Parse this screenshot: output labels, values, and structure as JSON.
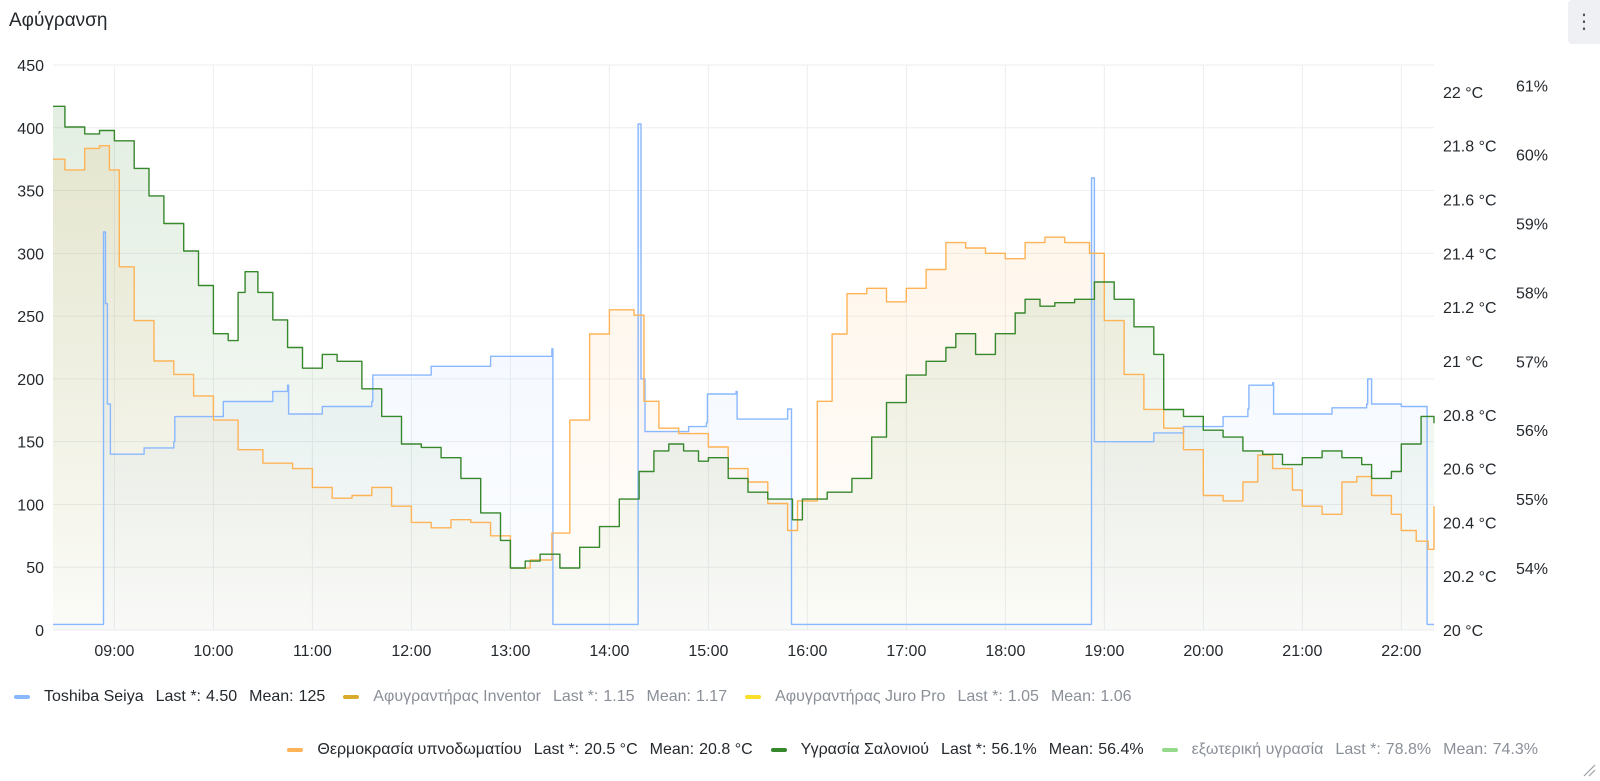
{
  "panel": {
    "title": "Αφύγρανση",
    "menu_icon": "kebab-menu-icon"
  },
  "legend": [
    {
      "name": "Toshiba Seiya",
      "color": "#8ab8ff",
      "dim": false,
      "last_label": "Last *:",
      "last": "4.50",
      "mean_label": "Mean:",
      "mean": "125"
    },
    {
      "name": "Αφυγραντήρας Inventor",
      "color": "#d8ab2c",
      "dim": true,
      "last_label": "Last *:",
      "last": "1.15",
      "mean_label": "Mean:",
      "mean": "1.17"
    },
    {
      "name": "Αφυγραντήρας Juro Pro",
      "color": "#fade2a",
      "dim": true,
      "last_label": "Last *:",
      "last": "1.05",
      "mean_label": "Mean:",
      "mean": "1.06"
    },
    {
      "name": "Θερμοκρασία υπνοδωματίου",
      "color": "#ffb357",
      "dim": false,
      "last_label": "Last *:",
      "last": "20.5 °C",
      "mean_label": "Mean:",
      "mean": "20.8 °C"
    },
    {
      "name": "Υγρασία Σαλονιού",
      "color": "#37872d",
      "dim": false,
      "last_label": "Last *:",
      "last": "56.1%",
      "mean_label": "Mean:",
      "mean": "56.4%"
    },
    {
      "name": "εξωτερική υγρασία",
      "color": "#96d98d",
      "dim": true,
      "last_label": "Last *:",
      "last": "78.8%",
      "mean_label": "Mean:",
      "mean": "74.3%"
    }
  ],
  "chart_data": {
    "type": "line",
    "title": "Αφύγρανση",
    "x_unit": "hours",
    "x_range": [
      8.38,
      22.33
    ],
    "x_ticks": [
      9,
      10,
      11,
      12,
      13,
      14,
      15,
      16,
      17,
      18,
      19,
      20,
      21,
      22
    ],
    "x_tick_labels": [
      "09:00",
      "10:00",
      "11:00",
      "12:00",
      "13:00",
      "14:00",
      "15:00",
      "16:00",
      "17:00",
      "18:00",
      "19:00",
      "20:00",
      "21:00",
      "22:00"
    ],
    "grid": true,
    "y_axes": [
      {
        "id": "left",
        "range": [
          0,
          450
        ],
        "ticks": [
          0,
          50,
          100,
          150,
          200,
          250,
          300,
          350,
          400,
          450
        ],
        "tick_labels": [
          "0",
          "50",
          "100",
          "150",
          "200",
          "250",
          "300",
          "350",
          "400",
          "450"
        ]
      },
      {
        "id": "temp",
        "range": [
          20.0,
          22.1
        ],
        "ticks": [
          20.0,
          20.2,
          20.4,
          20.6,
          20.8,
          21.0,
          21.2,
          21.4,
          21.6,
          21.8,
          22.0
        ],
        "tick_labels": [
          "20 °C",
          "20.2 °C",
          "20.4 °C",
          "20.6 °C",
          "20.8 °C",
          "21 °C",
          "21.2 °C",
          "21.4 °C",
          "21.6 °C",
          "21.8 °C",
          "22 °C"
        ]
      },
      {
        "id": "hum",
        "range": [
          53.1,
          61.3
        ],
        "ticks": [
          54,
          55,
          56,
          57,
          58,
          59,
          60,
          61
        ],
        "tick_labels": [
          "54%",
          "55%",
          "56%",
          "57%",
          "58%",
          "59%",
          "60%",
          "61%"
        ]
      }
    ],
    "series": [
      {
        "name": "Toshiba Seiya",
        "axis": "left",
        "color": "#8ab8ff",
        "step": true,
        "points": [
          [
            8.38,
            4.5
          ],
          [
            8.88,
            4.5
          ],
          [
            8.89,
            317
          ],
          [
            8.91,
            260
          ],
          [
            8.93,
            180
          ],
          [
            8.96,
            140
          ],
          [
            9.3,
            145
          ],
          [
            9.6,
            150
          ],
          [
            9.61,
            170
          ],
          [
            10.1,
            182
          ],
          [
            10.6,
            190
          ],
          [
            10.75,
            195
          ],
          [
            10.76,
            172
          ],
          [
            11.1,
            178
          ],
          [
            11.6,
            182
          ],
          [
            11.61,
            203
          ],
          [
            12.2,
            210
          ],
          [
            12.8,
            218
          ],
          [
            13.42,
            224
          ],
          [
            13.43,
            4.5
          ],
          [
            14.28,
            4.5
          ],
          [
            14.29,
            403
          ],
          [
            14.32,
            200
          ],
          [
            14.36,
            158
          ],
          [
            14.8,
            162
          ],
          [
            14.98,
            165
          ],
          [
            14.99,
            188
          ],
          [
            15.28,
            190
          ],
          [
            15.29,
            168
          ],
          [
            15.8,
            176
          ],
          [
            15.84,
            4.5
          ],
          [
            18.85,
            4.5
          ],
          [
            18.87,
            360
          ],
          [
            18.9,
            150
          ],
          [
            19.5,
            157
          ],
          [
            19.8,
            162
          ],
          [
            20.2,
            170
          ],
          [
            20.45,
            176
          ],
          [
            20.46,
            195
          ],
          [
            20.7,
            197
          ],
          [
            20.71,
            172
          ],
          [
            21.3,
            177
          ],
          [
            21.65,
            180
          ],
          [
            21.66,
            200
          ],
          [
            21.7,
            180
          ],
          [
            22.0,
            178
          ],
          [
            22.25,
            178
          ],
          [
            22.26,
            4.5
          ],
          [
            22.33,
            4.5
          ]
        ]
      },
      {
        "name": "Θερμοκρασία υπνοδωματίου",
        "axis": "temp",
        "color": "#ffb357",
        "step": true,
        "points": [
          [
            8.38,
            21.75
          ],
          [
            8.5,
            21.71
          ],
          [
            8.7,
            21.79
          ],
          [
            8.85,
            21.8
          ],
          [
            8.95,
            21.71
          ],
          [
            9.05,
            21.35
          ],
          [
            9.2,
            21.15
          ],
          [
            9.4,
            21.0
          ],
          [
            9.6,
            20.95
          ],
          [
            9.8,
            20.87
          ],
          [
            10.0,
            20.78
          ],
          [
            10.25,
            20.67
          ],
          [
            10.5,
            20.62
          ],
          [
            10.8,
            20.6
          ],
          [
            11.0,
            20.53
          ],
          [
            11.2,
            20.49
          ],
          [
            11.4,
            20.5
          ],
          [
            11.6,
            20.53
          ],
          [
            11.8,
            20.46
          ],
          [
            12.0,
            20.4
          ],
          [
            12.2,
            20.38
          ],
          [
            12.4,
            20.41
          ],
          [
            12.6,
            20.4
          ],
          [
            12.8,
            20.35
          ],
          [
            13.0,
            20.23
          ],
          [
            13.2,
            20.26
          ],
          [
            13.42,
            20.36
          ],
          [
            13.6,
            20.78
          ],
          [
            13.8,
            21.1
          ],
          [
            14.0,
            21.19
          ],
          [
            14.25,
            21.17
          ],
          [
            14.35,
            20.85
          ],
          [
            14.5,
            20.75
          ],
          [
            14.7,
            20.73
          ],
          [
            15.0,
            20.68
          ],
          [
            15.2,
            20.6
          ],
          [
            15.4,
            20.55
          ],
          [
            15.6,
            20.47
          ],
          [
            15.8,
            20.37
          ],
          [
            15.9,
            20.48
          ],
          [
            16.1,
            20.85
          ],
          [
            16.25,
            21.1
          ],
          [
            16.4,
            21.25
          ],
          [
            16.6,
            21.27
          ],
          [
            16.8,
            21.22
          ],
          [
            17.0,
            21.27
          ],
          [
            17.2,
            21.34
          ],
          [
            17.4,
            21.44
          ],
          [
            17.6,
            21.42
          ],
          [
            17.8,
            21.4
          ],
          [
            18.0,
            21.38
          ],
          [
            18.2,
            21.44
          ],
          [
            18.4,
            21.46
          ],
          [
            18.6,
            21.44
          ],
          [
            18.85,
            21.4
          ],
          [
            19.0,
            21.15
          ],
          [
            19.2,
            20.95
          ],
          [
            19.4,
            20.82
          ],
          [
            19.6,
            20.75
          ],
          [
            19.8,
            20.67
          ],
          [
            20.0,
            20.5
          ],
          [
            20.2,
            20.48
          ],
          [
            20.4,
            20.55
          ],
          [
            20.55,
            20.65
          ],
          [
            20.7,
            20.6
          ],
          [
            20.9,
            20.52
          ],
          [
            21.0,
            20.46
          ],
          [
            21.2,
            20.43
          ],
          [
            21.4,
            20.55
          ],
          [
            21.55,
            20.57
          ],
          [
            21.7,
            20.5
          ],
          [
            21.9,
            20.43
          ],
          [
            22.0,
            20.37
          ],
          [
            22.15,
            20.33
          ],
          [
            22.27,
            20.3
          ],
          [
            22.33,
            20.46
          ]
        ]
      },
      {
        "name": "Υγρασία Σαλονιού",
        "axis": "hum",
        "color": "#37872d",
        "step": true,
        "points": [
          [
            8.38,
            60.7
          ],
          [
            8.5,
            60.4
          ],
          [
            8.7,
            60.3
          ],
          [
            8.85,
            60.35
          ],
          [
            9.0,
            60.2
          ],
          [
            9.2,
            59.8
          ],
          [
            9.35,
            59.4
          ],
          [
            9.5,
            59.0
          ],
          [
            9.7,
            58.6
          ],
          [
            9.85,
            58.1
          ],
          [
            10.0,
            57.4
          ],
          [
            10.15,
            57.3
          ],
          [
            10.25,
            58.0
          ],
          [
            10.32,
            58.3
          ],
          [
            10.45,
            58.0
          ],
          [
            10.6,
            57.6
          ],
          [
            10.75,
            57.2
          ],
          [
            10.9,
            56.9
          ],
          [
            11.1,
            57.1
          ],
          [
            11.25,
            57.0
          ],
          [
            11.5,
            56.6
          ],
          [
            11.7,
            56.2
          ],
          [
            11.9,
            55.8
          ],
          [
            12.1,
            55.75
          ],
          [
            12.3,
            55.6
          ],
          [
            12.5,
            55.3
          ],
          [
            12.7,
            54.8
          ],
          [
            12.9,
            54.4
          ],
          [
            13.0,
            54.0
          ],
          [
            13.15,
            54.1
          ],
          [
            13.3,
            54.2
          ],
          [
            13.5,
            54.0
          ],
          [
            13.7,
            54.3
          ],
          [
            13.9,
            54.6
          ],
          [
            14.1,
            55.0
          ],
          [
            14.3,
            55.4
          ],
          [
            14.45,
            55.7
          ],
          [
            14.6,
            55.8
          ],
          [
            14.75,
            55.7
          ],
          [
            14.9,
            55.55
          ],
          [
            15.0,
            55.6
          ],
          [
            15.2,
            55.3
          ],
          [
            15.4,
            55.1
          ],
          [
            15.6,
            55.0
          ],
          [
            15.85,
            54.7
          ],
          [
            15.95,
            55.0
          ],
          [
            16.2,
            55.1
          ],
          [
            16.45,
            55.3
          ],
          [
            16.65,
            55.9
          ],
          [
            16.8,
            56.4
          ],
          [
            17.0,
            56.8
          ],
          [
            17.2,
            57.0
          ],
          [
            17.4,
            57.2
          ],
          [
            17.5,
            57.4
          ],
          [
            17.7,
            57.1
          ],
          [
            17.9,
            57.4
          ],
          [
            18.1,
            57.7
          ],
          [
            18.2,
            57.9
          ],
          [
            18.35,
            57.8
          ],
          [
            18.5,
            57.85
          ],
          [
            18.7,
            57.9
          ],
          [
            18.9,
            58.15
          ],
          [
            19.1,
            57.9
          ],
          [
            19.3,
            57.5
          ],
          [
            19.5,
            57.1
          ],
          [
            19.6,
            56.3
          ],
          [
            19.8,
            56.2
          ],
          [
            20.0,
            56.0
          ],
          [
            20.2,
            55.9
          ],
          [
            20.4,
            55.7
          ],
          [
            20.6,
            55.65
          ],
          [
            20.8,
            55.5
          ],
          [
            21.0,
            55.6
          ],
          [
            21.2,
            55.7
          ],
          [
            21.4,
            55.6
          ],
          [
            21.6,
            55.5
          ],
          [
            21.7,
            55.3
          ],
          [
            21.9,
            55.4
          ],
          [
            22.0,
            55.8
          ],
          [
            22.2,
            56.2
          ],
          [
            22.33,
            56.1
          ]
        ]
      }
    ]
  }
}
